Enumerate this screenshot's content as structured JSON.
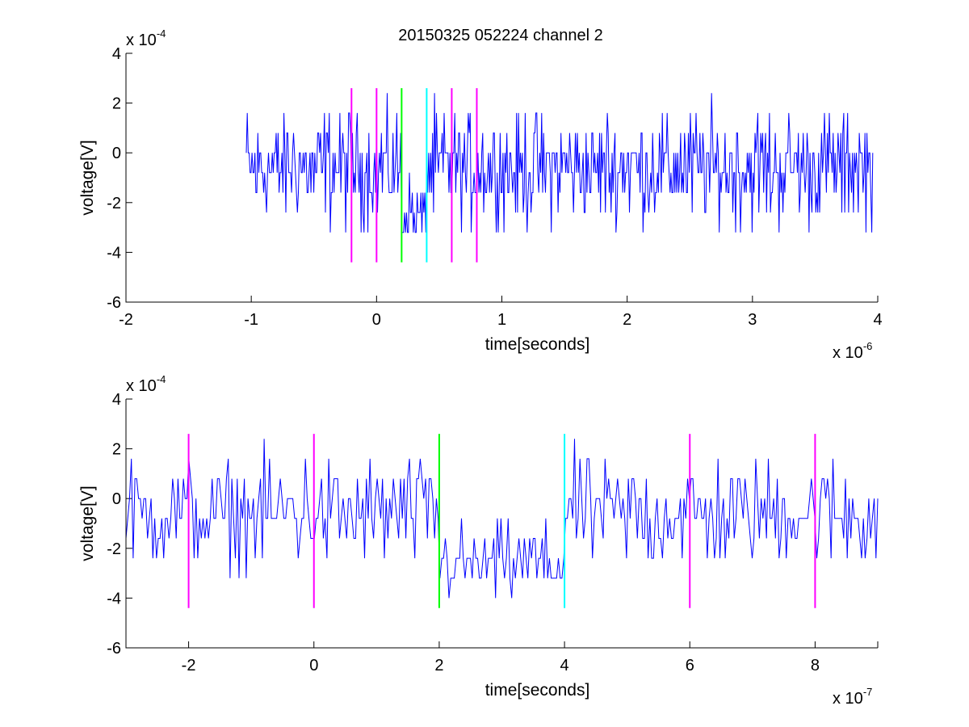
{
  "title": "20150325 052224 channel 2",
  "colors": {
    "signal": "#0000ff",
    "magenta": "#ff00ff",
    "green": "#00ff00",
    "cyan": "#00ffff",
    "axes": "#000000"
  },
  "chart_data": [
    {
      "type": "line",
      "xlabel": "time[seconds]",
      "ylabel": "voltage[V]",
      "x_exponent_base": "x 10",
      "x_exponent_power": "-6",
      "y_exponent_base": "x 10",
      "y_exponent_power": "-4",
      "xlim": [
        -2,
        4
      ],
      "ylim": [
        -6,
        4
      ],
      "xticks": [
        -2,
        -1,
        0,
        1,
        2,
        3,
        4
      ],
      "yticks": [
        -6,
        -4,
        -2,
        0,
        2,
        4
      ],
      "xtick_labels": [
        "-2",
        "-1",
        "0",
        "1",
        "2",
        "3",
        "4"
      ],
      "ytick_labels": [
        "-6",
        "-4",
        "-2",
        "0",
        "2",
        "4"
      ],
      "signal_x_range": [
        -1.04,
        3.96
      ],
      "signal_y_levels": [
        -3.2,
        -2.4,
        -1.6,
        -0.8,
        0,
        0.8,
        1.6,
        2.4
      ],
      "dip_x_range": [
        0.2,
        0.4
      ],
      "vertical_markers": [
        {
          "x": -0.2,
          "y_range": [
            -4.4,
            2.6
          ],
          "color": "magenta"
        },
        {
          "x": 0.0,
          "y_range": [
            -4.4,
            2.6
          ],
          "color": "magenta"
        },
        {
          "x": 0.2,
          "y_range": [
            -4.4,
            2.6
          ],
          "color": "green"
        },
        {
          "x": 0.4,
          "y_range": [
            -4.4,
            2.6
          ],
          "color": "cyan"
        },
        {
          "x": 0.6,
          "y_range": [
            -4.4,
            2.6
          ],
          "color": "magenta"
        },
        {
          "x": 0.8,
          "y_range": [
            -4.4,
            2.6
          ],
          "color": "magenta"
        }
      ]
    },
    {
      "type": "line",
      "xlabel": "time[seconds]",
      "ylabel": "voltage[V]",
      "x_exponent_base": "x 10",
      "x_exponent_power": "-7",
      "y_exponent_base": "x 10",
      "y_exponent_power": "-4",
      "xlim": [
        -3,
        9
      ],
      "ylim": [
        -6,
        4
      ],
      "xticks": [
        -2,
        0,
        2,
        4,
        6,
        8
      ],
      "yticks": [
        -6,
        -4,
        -2,
        0,
        2,
        4
      ],
      "xtick_labels": [
        "-2",
        "0",
        "2",
        "4",
        "6",
        "8"
      ],
      "ytick_labels": [
        "-6",
        "-4",
        "-2",
        "0",
        "2",
        "4"
      ],
      "signal_x_range": [
        -3,
        9
      ],
      "signal_y_levels": [
        -4,
        -3.2,
        -2.4,
        -1.6,
        -0.8,
        0,
        0.8,
        1.6,
        2.4
      ],
      "dip_x_range": [
        2,
        4
      ],
      "vertical_markers": [
        {
          "x": -2,
          "y_range": [
            -4.4,
            2.6
          ],
          "color": "magenta"
        },
        {
          "x": 0,
          "y_range": [
            -4.4,
            2.6
          ],
          "color": "magenta"
        },
        {
          "x": 2,
          "y_range": [
            -4.4,
            2.6
          ],
          "color": "green"
        },
        {
          "x": 4,
          "y_range": [
            -4.4,
            2.6
          ],
          "color": "cyan"
        },
        {
          "x": 6,
          "y_range": [
            -4.4,
            2.6
          ],
          "color": "magenta"
        },
        {
          "x": 8,
          "y_range": [
            -4.4,
            2.6
          ],
          "color": "magenta"
        }
      ]
    }
  ]
}
